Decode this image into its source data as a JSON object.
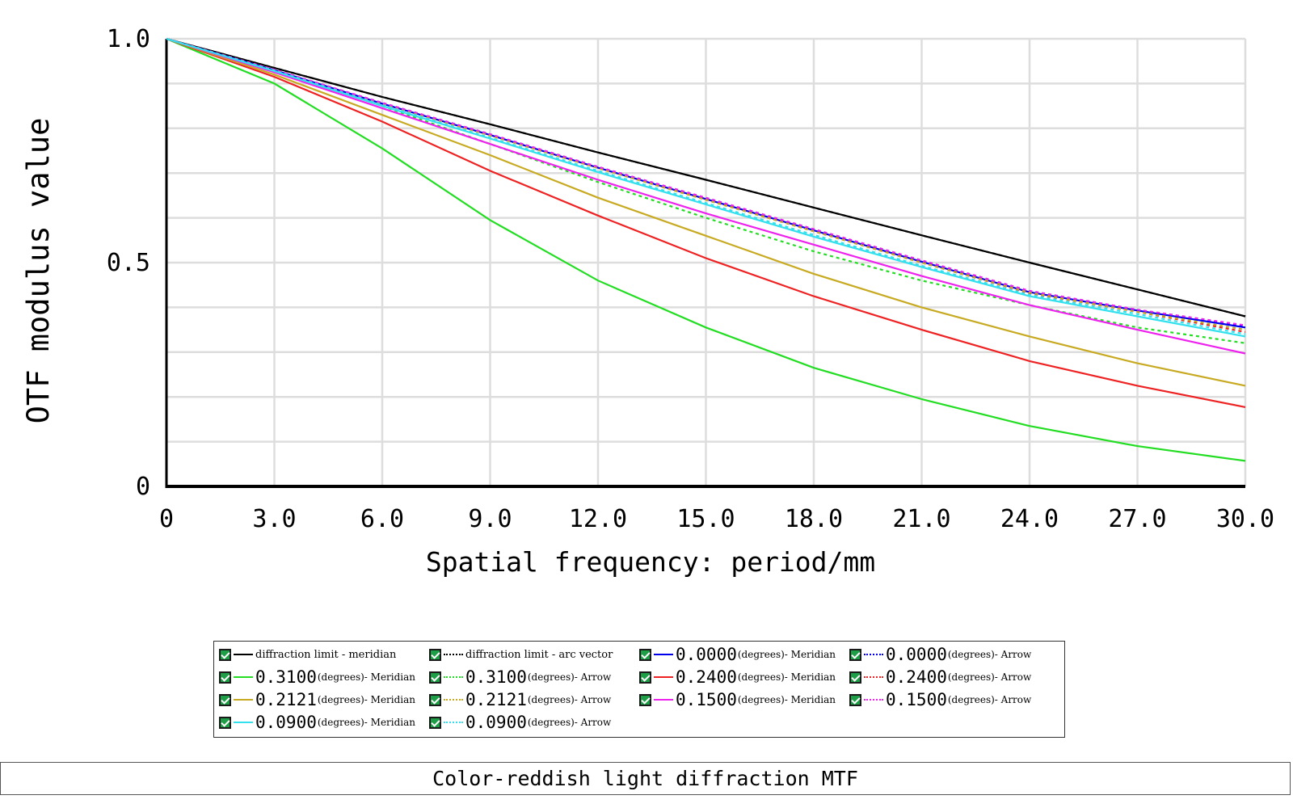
{
  "chart_data": {
    "type": "line",
    "xlabel": "Spatial frequency: period/mm",
    "ylabel": "OTF modulus value",
    "xlim": [
      0,
      30
    ],
    "ylim": [
      0,
      1
    ],
    "xticks": [
      "0",
      "3.0",
      "6.0",
      "9.0",
      "12.0",
      "15.0",
      "18.0",
      "21.0",
      "24.0",
      "27.0",
      "30.0"
    ],
    "yticks": [
      {
        "value": 1.0,
        "label": "1.0"
      },
      {
        "value": 0.5,
        "label": "0.5"
      },
      {
        "value": 0,
        "label": "0"
      }
    ],
    "grid": true,
    "legend_position": "bottom",
    "x": [
      0,
      3,
      6,
      9,
      12,
      15,
      18,
      21,
      24,
      27,
      30
    ],
    "series": [
      {
        "name": "diffraction limit - meridian",
        "color": "#000000",
        "dash": false,
        "values": [
          1.0,
          0.935,
          0.87,
          0.809,
          0.746,
          0.685,
          0.623,
          0.561,
          0.5,
          0.44,
          0.38
        ]
      },
      {
        "name": "diffraction limit - arc vector",
        "color": "#000000",
        "dash": true,
        "values": [
          1.0,
          0.935,
          0.87,
          0.809,
          0.746,
          0.685,
          0.623,
          0.561,
          0.5,
          0.44,
          0.38
        ]
      },
      {
        "name": "0.0000(degrees)- Meridian",
        "color": "#0000ee",
        "dash": false,
        "values": [
          1.0,
          0.93,
          0.855,
          0.785,
          0.712,
          0.642,
          0.572,
          0.502,
          0.434,
          0.393,
          0.355
        ]
      },
      {
        "name": "0.0000 (degrees)- Arrow",
        "color": "#0000ee",
        "dash": true,
        "values": [
          1.0,
          0.93,
          0.856,
          0.786,
          0.713,
          0.643,
          0.573,
          0.503,
          0.435,
          0.394,
          0.357
        ]
      },
      {
        "name": "0.3100(degrees)- Meridian",
        "color": "#22dd22",
        "dash": false,
        "values": [
          1.0,
          0.9,
          0.755,
          0.595,
          0.46,
          0.355,
          0.265,
          0.195,
          0.135,
          0.09,
          0.057
        ]
      },
      {
        "name": "0.3100 (degrees)- Arrow",
        "color": "#22dd22",
        "dash": true,
        "values": [
          1.0,
          0.93,
          0.85,
          0.765,
          0.68,
          0.6,
          0.525,
          0.46,
          0.405,
          0.355,
          0.32
        ]
      },
      {
        "name": "0.2400(degrees)- Meridian",
        "color": "#ee2222",
        "dash": false,
        "values": [
          1.0,
          0.915,
          0.815,
          0.705,
          0.605,
          0.51,
          0.425,
          0.35,
          0.28,
          0.225,
          0.177
        ]
      },
      {
        "name": "0.2400 (degrees)- Arrow",
        "color": "#ee2222",
        "dash": true,
        "values": [
          1.0,
          0.931,
          0.856,
          0.785,
          0.712,
          0.641,
          0.57,
          0.5,
          0.432,
          0.39,
          0.345
        ]
      },
      {
        "name": "0.2121(degrees)- Meridian",
        "color": "#c8aa22",
        "dash": false,
        "values": [
          1.0,
          0.92,
          0.83,
          0.74,
          0.645,
          0.56,
          0.475,
          0.4,
          0.335,
          0.275,
          0.225
        ]
      },
      {
        "name": "0.2121 (degrees)- Arrow",
        "color": "#c8aa22",
        "dash": true,
        "values": [
          1.0,
          0.93,
          0.855,
          0.784,
          0.711,
          0.64,
          0.57,
          0.5,
          0.433,
          0.39,
          0.35
        ]
      },
      {
        "name": "0.1500(degrees)- Meridian",
        "color": "#ee22ee",
        "dash": false,
        "values": [
          1.0,
          0.925,
          0.845,
          0.765,
          0.685,
          0.61,
          0.54,
          0.47,
          0.405,
          0.35,
          0.297
        ]
      },
      {
        "name": "0.1500 (degrees)- Arrow",
        "color": "#ee22ee",
        "dash": true,
        "values": [
          1.0,
          0.931,
          0.857,
          0.787,
          0.714,
          0.645,
          0.575,
          0.505,
          0.437,
          0.395,
          0.36
        ]
      },
      {
        "name": "0.0900(degrees)- Meridian",
        "color": "#33e0ee",
        "dash": false,
        "values": [
          1.0,
          0.928,
          0.85,
          0.777,
          0.702,
          0.63,
          0.558,
          0.49,
          0.425,
          0.38,
          0.335
        ]
      },
      {
        "name": "0.0900 (degrees)- Arrow",
        "color": "#33e0ee",
        "dash": true,
        "values": [
          1.0,
          0.929,
          0.852,
          0.779,
          0.705,
          0.633,
          0.562,
          0.493,
          0.428,
          0.385,
          0.34
        ]
      }
    ]
  },
  "legend": [
    {
      "big": "",
      "small": "diffraction limit - meridian"
    },
    {
      "big": "",
      "small": "diffraction limit - arc vector"
    },
    {
      "big": "0.0000",
      "small": "(degrees)- Meridian"
    },
    {
      "big": "0.0000",
      "small": " (degrees)- Arrow"
    },
    {
      "big": "0.3100",
      "small": "(degrees)- Meridian"
    },
    {
      "big": "0.3100",
      "small": " (degrees)- Arrow"
    },
    {
      "big": "0.2400",
      "small": "(degrees)- Meridian"
    },
    {
      "big": "0.2400",
      "small": " (degrees)- Arrow"
    },
    {
      "big": "0.2121",
      "small": "(degrees)- Meridian"
    },
    {
      "big": "0.2121",
      "small": " (degrees)- Arrow"
    },
    {
      "big": "0.1500",
      "small": "(degrees)- Meridian"
    },
    {
      "big": "0.1500",
      "small": " (degrees)- Arrow"
    },
    {
      "big": "0.0900",
      "small": "(degrees)- Meridian"
    },
    {
      "big": "0.0900",
      "small": " (degrees)- Arrow"
    }
  ],
  "caption": "Color-reddish light diffraction MTF"
}
